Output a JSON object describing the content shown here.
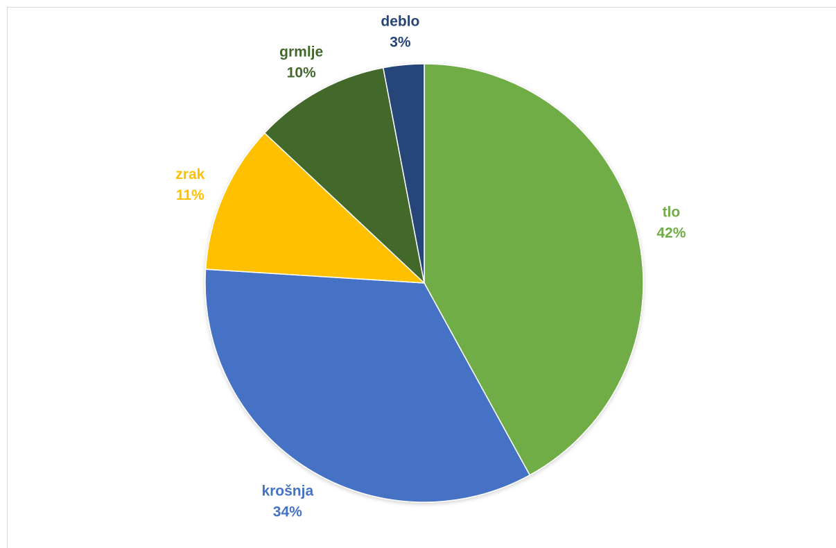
{
  "chart_data": {
    "type": "pie",
    "title": "",
    "slices": [
      {
        "label": "tlo",
        "value": 42,
        "percent_label": "42%",
        "color": "#70ad47"
      },
      {
        "label": "krošnja",
        "value": 34,
        "percent_label": "34%",
        "color": "#4472c4"
      },
      {
        "label": "zrak",
        "value": 11,
        "percent_label": "11%",
        "color": "#ffc000"
      },
      {
        "label": "grmlje",
        "value": 10,
        "percent_label": "10%",
        "color": "#43682b"
      },
      {
        "label": "deblo",
        "value": 3,
        "percent_label": "3%",
        "color": "#264478"
      }
    ],
    "legend": false,
    "data_labels": "outside"
  }
}
